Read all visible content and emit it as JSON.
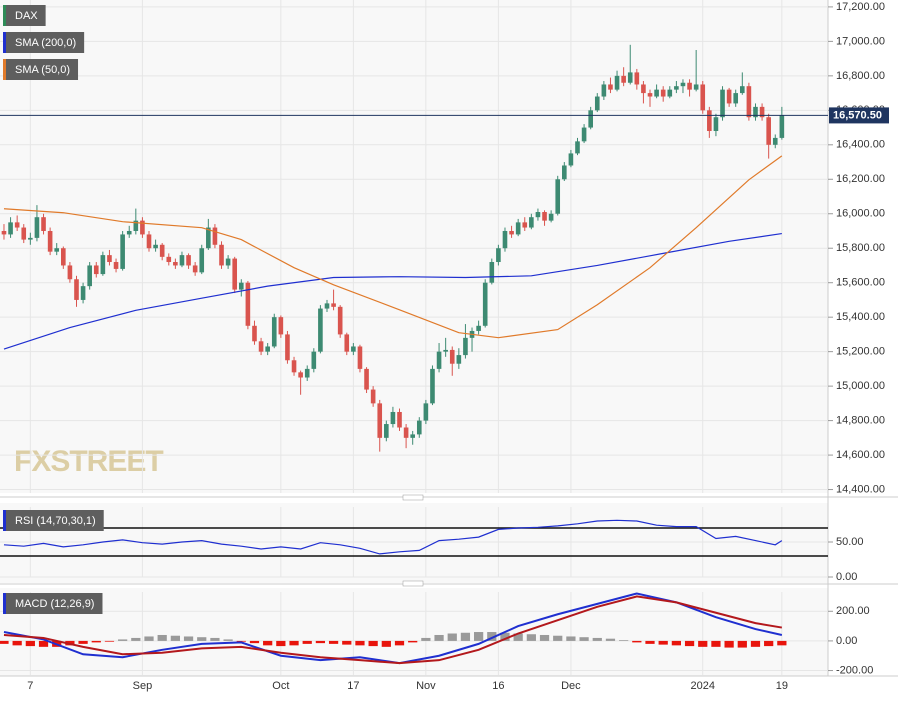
{
  "chart_data": [
    {
      "type": "candlestick",
      "title": "DAX",
      "watermark": "FXSTREET",
      "up_color": "#3d8a72",
      "down_color": "#d9544e",
      "legend_color": "#2e8b57",
      "ylim": [
        14380,
        17240
      ],
      "yticks": [
        {
          "value": 14400,
          "label": "14,400.00"
        },
        {
          "value": 14600,
          "label": "14,600.00"
        },
        {
          "value": 14800,
          "label": "14,800.00"
        },
        {
          "value": 15000,
          "label": "15,000.00"
        },
        {
          "value": 15200,
          "label": "15,200.00"
        },
        {
          "value": 15400,
          "label": "15,400.00"
        },
        {
          "value": 15600,
          "label": "15,600.00"
        },
        {
          "value": 15800,
          "label": "15,800.00"
        },
        {
          "value": 16000,
          "label": "16,000.00"
        },
        {
          "value": 16200,
          "label": "16,200.00"
        },
        {
          "value": 16400,
          "label": "16,400.00"
        },
        {
          "value": 16600,
          "label": "16,600.00"
        },
        {
          "value": 16800,
          "label": "16,800.00"
        },
        {
          "value": 17000,
          "label": "17,000.00"
        },
        {
          "value": 17200,
          "label": "17,200.00"
        }
      ],
      "xlim": [
        -0.3,
        125
      ],
      "xticks": [
        {
          "value": 4,
          "label": "7"
        },
        {
          "value": 21,
          "label": "Sep"
        },
        {
          "value": 42,
          "label": "Oct"
        },
        {
          "value": 53,
          "label": "17"
        },
        {
          "value": 64,
          "label": "Nov"
        },
        {
          "value": 75,
          "label": "16"
        },
        {
          "value": 86,
          "label": "Dec"
        },
        {
          "value": 106,
          "label": "2024"
        },
        {
          "value": 118,
          "label": "19"
        }
      ],
      "price_line": {
        "value": 16570.5,
        "label": "16,570.50",
        "color": "#1f3560"
      },
      "ohlc": [
        [
          15900,
          15940,
          15850,
          15880
        ],
        [
          15880,
          15980,
          15860,
          15950
        ],
        [
          15950,
          15990,
          15900,
          15920
        ],
        [
          15920,
          15940,
          15830,
          15850
        ],
        [
          15850,
          15890,
          15820,
          15860
        ],
        [
          15860,
          16050,
          15840,
          15980
        ],
        [
          15980,
          16000,
          15880,
          15900
        ],
        [
          15900,
          15920,
          15760,
          15780
        ],
        [
          15780,
          15830,
          15760,
          15800
        ],
        [
          15800,
          15810,
          15680,
          15700
        ],
        [
          15700,
          15720,
          15600,
          15620
        ],
        [
          15620,
          15640,
          15460,
          15500
        ],
        [
          15500,
          15600,
          15480,
          15580
        ],
        [
          15580,
          15720,
          15560,
          15700
        ],
        [
          15700,
          15720,
          15630,
          15650
        ],
        [
          15650,
          15780,
          15640,
          15760
        ],
        [
          15760,
          15790,
          15700,
          15720
        ],
        [
          15720,
          15740,
          15660,
          15680
        ],
        [
          15680,
          15900,
          15670,
          15880
        ],
        [
          15880,
          15930,
          15860,
          15900
        ],
        [
          15900,
          16030,
          15880,
          15960
        ],
        [
          15960,
          15980,
          15860,
          15880
        ],
        [
          15880,
          15900,
          15780,
          15800
        ],
        [
          15800,
          15850,
          15780,
          15820
        ],
        [
          15820,
          15830,
          15730,
          15750
        ],
        [
          15750,
          15770,
          15700,
          15720
        ],
        [
          15720,
          15740,
          15680,
          15700
        ],
        [
          15700,
          15780,
          15690,
          15760
        ],
        [
          15760,
          15770,
          15680,
          15700
        ],
        [
          15700,
          15720,
          15640,
          15660
        ],
        [
          15660,
          15820,
          15650,
          15800
        ],
        [
          15800,
          15970,
          15790,
          15920
        ],
        [
          15920,
          15940,
          15800,
          15820
        ],
        [
          15820,
          15840,
          15680,
          15700
        ],
        [
          15700,
          15760,
          15680,
          15740
        ],
        [
          15740,
          15750,
          15540,
          15560
        ],
        [
          15560,
          15620,
          15520,
          15600
        ],
        [
          15600,
          15610,
          15330,
          15350
        ],
        [
          15350,
          15380,
          15240,
          15260
        ],
        [
          15260,
          15280,
          15180,
          15200
        ],
        [
          15200,
          15250,
          15180,
          15230
        ],
        [
          15230,
          15420,
          15220,
          15400
        ],
        [
          15400,
          15410,
          15280,
          15300
        ],
        [
          15300,
          15320,
          15130,
          15150
        ],
        [
          15150,
          15170,
          15060,
          15080
        ],
        [
          15080,
          15090,
          14950,
          15050
        ],
        [
          15050,
          15120,
          15030,
          15100
        ],
        [
          15100,
          15220,
          15080,
          15200
        ],
        [
          15200,
          15470,
          15190,
          15450
        ],
        [
          15450,
          15500,
          15430,
          15480
        ],
        [
          15480,
          15560,
          15440,
          15460
        ],
        [
          15460,
          15470,
          15280,
          15300
        ],
        [
          15300,
          15310,
          15180,
          15200
        ],
        [
          15200,
          15250,
          15180,
          15230
        ],
        [
          15230,
          15240,
          15080,
          15100
        ],
        [
          15100,
          15110,
          14960,
          14980
        ],
        [
          14980,
          15000,
          14880,
          14900
        ],
        [
          14900,
          14920,
          14620,
          14700
        ],
        [
          14700,
          14800,
          14680,
          14780
        ],
        [
          14780,
          14880,
          14760,
          14850
        ],
        [
          14850,
          14870,
          14740,
          14760
        ],
        [
          14760,
          14780,
          14640,
          14700
        ],
        [
          14700,
          14740,
          14660,
          14720
        ],
        [
          14720,
          14820,
          14700,
          14800
        ],
        [
          14800,
          14920,
          14780,
          14900
        ],
        [
          14900,
          15120,
          14890,
          15100
        ],
        [
          15100,
          15250,
          15080,
          15200
        ],
        [
          15200,
          15280,
          15170,
          15210
        ],
        [
          15210,
          15230,
          15060,
          15130
        ],
        [
          15130,
          15220,
          15100,
          15180
        ],
        [
          15180,
          15360,
          15160,
          15280
        ],
        [
          15280,
          15340,
          15200,
          15320
        ],
        [
          15320,
          15380,
          15300,
          15350
        ],
        [
          15350,
          15620,
          15340,
          15600
        ],
        [
          15600,
          15740,
          15590,
          15720
        ],
        [
          15720,
          15820,
          15700,
          15800
        ],
        [
          15800,
          15920,
          15780,
          15900
        ],
        [
          15900,
          15930,
          15860,
          15880
        ],
        [
          15880,
          15970,
          15870,
          15950
        ],
        [
          15950,
          15980,
          15900,
          15920
        ],
        [
          15920,
          16000,
          15910,
          15980
        ],
        [
          15980,
          16030,
          15960,
          16010
        ],
        [
          16010,
          16020,
          15930,
          15960
        ],
        [
          15960,
          16020,
          15950,
          16000
        ],
        [
          16000,
          16220,
          15990,
          16200
        ],
        [
          16200,
          16300,
          16190,
          16280
        ],
        [
          16280,
          16370,
          16270,
          16350
        ],
        [
          16350,
          16440,
          16340,
          16420
        ],
        [
          16420,
          16520,
          16410,
          16500
        ],
        [
          16500,
          16620,
          16490,
          16600
        ],
        [
          16600,
          16700,
          16590,
          16680
        ],
        [
          16680,
          16770,
          16660,
          16750
        ],
        [
          16750,
          16790,
          16700,
          16720
        ],
        [
          16720,
          16830,
          16710,
          16800
        ],
        [
          16800,
          16850,
          16740,
          16760
        ],
        [
          16760,
          16980,
          16750,
          16820
        ],
        [
          16820,
          16840,
          16720,
          16750
        ],
        [
          16750,
          16770,
          16640,
          16700
        ],
        [
          16700,
          16720,
          16620,
          16680
        ],
        [
          16680,
          16750,
          16670,
          16720
        ],
        [
          16720,
          16740,
          16650,
          16680
        ],
        [
          16680,
          16740,
          16670,
          16720
        ],
        [
          16720,
          16770,
          16700,
          16740
        ],
        [
          16740,
          16780,
          16700,
          16760
        ],
        [
          16760,
          16780,
          16680,
          16720
        ],
        [
          16720,
          16950,
          16710,
          16750
        ],
        [
          16750,
          16770,
          16580,
          16600
        ],
        [
          16600,
          16620,
          16440,
          16480
        ],
        [
          16480,
          16580,
          16450,
          16560
        ],
        [
          16560,
          16740,
          16540,
          16720
        ],
        [
          16720,
          16730,
          16620,
          16640
        ],
        [
          16640,
          16720,
          16620,
          16700
        ],
        [
          16700,
          16820,
          16690,
          16740
        ],
        [
          16740,
          16760,
          16540,
          16560
        ],
        [
          16560,
          16640,
          16540,
          16620
        ],
        [
          16620,
          16640,
          16540,
          16560
        ],
        [
          16560,
          16580,
          16320,
          16400
        ],
        [
          16400,
          16460,
          16380,
          16440
        ],
        [
          16440,
          16620,
          16430,
          16570.5
        ]
      ],
      "series": [
        {
          "name": "SMA (200,0)",
          "color": "#1f2fd0",
          "x": [
            0,
            10,
            20,
            30,
            40,
            50,
            60,
            70,
            80,
            90,
            100,
            110,
            118
          ],
          "values": [
            15215,
            15340,
            15440,
            15510,
            15580,
            15630,
            15635,
            15630,
            15640,
            15700,
            15770,
            15840,
            15885
          ]
        },
        {
          "name": "SMA (50,0)",
          "color": "#e07a2a",
          "x": [
            0,
            9,
            18,
            30,
            36,
            44,
            50,
            60,
            69,
            75,
            84,
            90,
            98,
            105,
            113,
            118
          ],
          "values": [
            16029,
            16006,
            15954,
            15919,
            15850,
            15687,
            15588,
            15443,
            15310,
            15281,
            15328,
            15472,
            15687,
            15919,
            16197,
            16336
          ]
        }
      ]
    },
    {
      "type": "line",
      "title": "RSI (14,70,30,1)",
      "legend_color": "#1f2fd0",
      "ylim": [
        0,
        100
      ],
      "yticks": [
        {
          "value": 0,
          "label": "0.00"
        },
        {
          "value": 50,
          "label": "50.00"
        }
      ],
      "levels": [
        70,
        30
      ],
      "series": [
        {
          "color": "#1f2fd0",
          "x": [
            0,
            3,
            6,
            9,
            12,
            15,
            18,
            21,
            24,
            27,
            30,
            33,
            36,
            39,
            42,
            45,
            48,
            51,
            54,
            57,
            60,
            63,
            66,
            69,
            72,
            75,
            78,
            81,
            84,
            87,
            90,
            93,
            96,
            99,
            102,
            105,
            108,
            111,
            114,
            117,
            118
          ],
          "values": [
            46,
            44,
            48,
            43,
            46,
            50,
            53,
            49,
            47,
            50,
            52,
            47,
            44,
            40,
            43,
            40,
            49,
            46,
            41,
            33,
            36,
            38,
            52,
            54,
            57,
            68,
            70,
            71,
            73,
            76,
            80,
            81,
            80,
            74,
            72,
            72,
            55,
            58,
            52,
            46,
            52
          ]
        }
      ]
    },
    {
      "type": "macd",
      "title": "MACD (12,26,9)",
      "legend_color": "#1f2fd0",
      "ylim": [
        -230,
        330
      ],
      "yticks": [
        {
          "value": -200,
          "label": "-200.00"
        },
        {
          "value": 0,
          "label": "0.00"
        },
        {
          "value": 200,
          "label": "200.00"
        }
      ],
      "series": [
        {
          "color": "#1f2fd0",
          "x": [
            0,
            6,
            12,
            18,
            24,
            30,
            36,
            42,
            48,
            54,
            60,
            66,
            72,
            78,
            84,
            90,
            96,
            102,
            108,
            114,
            118
          ],
          "values": [
            60,
            10,
            -90,
            -110,
            -60,
            -20,
            -10,
            -100,
            -130,
            -110,
            -150,
            -100,
            -20,
            100,
            180,
            250,
            320,
            260,
            160,
            80,
            40
          ]
        },
        {
          "color": "#b3181c",
          "x": [
            0,
            6,
            12,
            18,
            24,
            30,
            36,
            42,
            48,
            54,
            60,
            66,
            72,
            78,
            84,
            90,
            96,
            102,
            108,
            114,
            118
          ],
          "values": [
            40,
            20,
            -40,
            -90,
            -80,
            -50,
            -40,
            -80,
            -110,
            -130,
            -150,
            -130,
            -60,
            50,
            140,
            230,
            300,
            260,
            190,
            120,
            90
          ]
        }
      ],
      "histogram": {
        "up_color": "#9a9a9a",
        "down_color": "#e8140c",
        "x": [
          0,
          2,
          4,
          6,
          8,
          10,
          12,
          14,
          16,
          18,
          20,
          22,
          24,
          26,
          28,
          30,
          32,
          34,
          36,
          38,
          40,
          42,
          44,
          46,
          48,
          50,
          52,
          54,
          56,
          58,
          60,
          62,
          64,
          66,
          68,
          70,
          72,
          74,
          76,
          78,
          80,
          82,
          84,
          86,
          88,
          90,
          92,
          94,
          96,
          98,
          100,
          102,
          104,
          106,
          108,
          110,
          112,
          114,
          116,
          118
        ],
        "values": [
          -20,
          -30,
          -35,
          -40,
          -40,
          -30,
          -20,
          -10,
          -5,
          10,
          20,
          30,
          40,
          35,
          30,
          25,
          20,
          10,
          -5,
          -15,
          -30,
          -35,
          -30,
          -20,
          -15,
          -20,
          -25,
          -30,
          -35,
          -40,
          -30,
          -10,
          20,
          40,
          50,
          55,
          60,
          60,
          55,
          50,
          45,
          40,
          35,
          30,
          25,
          20,
          15,
          5,
          -10,
          -20,
          -25,
          -30,
          -35,
          -40,
          -40,
          -45,
          -45,
          -40,
          -35,
          -30
        ]
      }
    }
  ]
}
